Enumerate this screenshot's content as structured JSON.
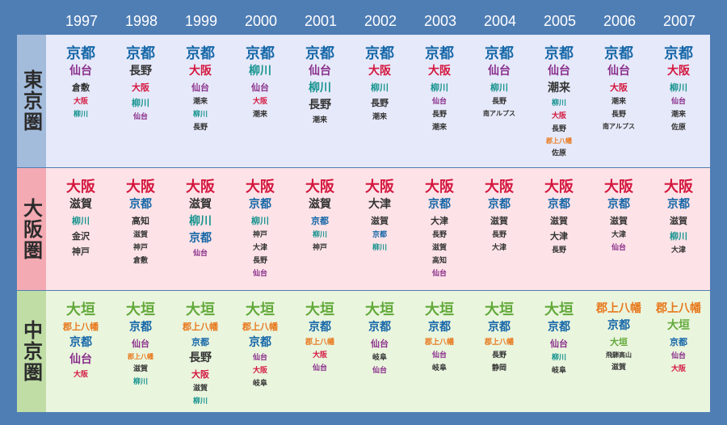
{
  "colors": {
    "background": "#4f7eb5",
    "tokyo_panel": "#e6e9f9",
    "tokyo_label": "#a4bcdc",
    "osaka_panel": "#fde3e7",
    "osaka_label": "#f3aab2",
    "chubu_panel": "#eaf5de",
    "chubu_label": "#bfdda5"
  },
  "years": [
    "1997",
    "1998",
    "1999",
    "2000",
    "2001",
    "2002",
    "2003",
    "2004",
    "2005",
    "2006",
    "2007"
  ],
  "regions": [
    {
      "label": "東京圏",
      "columns": [
        [
          {
            "t": "京都",
            "c": "#1667a8",
            "s": 1
          },
          {
            "t": "仙台",
            "c": "#8a2f8c",
            "s": 2
          },
          {
            "t": "倉敷",
            "c": "#333333",
            "s": 3
          },
          {
            "t": "大阪",
            "c": "#d4163e",
            "s": 4
          },
          {
            "t": "柳川",
            "c": "#16938f",
            "s": 4
          }
        ],
        [
          {
            "t": "京都",
            "c": "#1667a8",
            "s": 1
          },
          {
            "t": "長野",
            "c": "#333333",
            "s": 2
          },
          {
            "t": "大阪",
            "c": "#d4163e",
            "s": 3
          },
          {
            "t": "柳川",
            "c": "#16938f",
            "s": 3
          },
          {
            "t": "仙台",
            "c": "#8a2f8c",
            "s": 4
          }
        ],
        [
          {
            "t": "京都",
            "c": "#1667a8",
            "s": 1
          },
          {
            "t": "大阪",
            "c": "#d4163e",
            "s": 2
          },
          {
            "t": "仙台",
            "c": "#8a2f8c",
            "s": 3
          },
          {
            "t": "潮来",
            "c": "#333333",
            "s": 4
          },
          {
            "t": "柳川",
            "c": "#16938f",
            "s": 4
          },
          {
            "t": "長野",
            "c": "#333333",
            "s": 4
          }
        ],
        [
          {
            "t": "京都",
            "c": "#1667a8",
            "s": 1
          },
          {
            "t": "柳川",
            "c": "#16938f",
            "s": 2
          },
          {
            "t": "仙台",
            "c": "#8a2f8c",
            "s": 3
          },
          {
            "t": "大阪",
            "c": "#d4163e",
            "s": 4
          },
          {
            "t": "潮来",
            "c": "#333333",
            "s": 4
          }
        ],
        [
          {
            "t": "京都",
            "c": "#1667a8",
            "s": 1
          },
          {
            "t": "仙台",
            "c": "#8a2f8c",
            "s": 2
          },
          {
            "t": "柳川",
            "c": "#16938f",
            "s": 2
          },
          {
            "t": "長野",
            "c": "#333333",
            "s": 2
          },
          {
            "t": "潮来",
            "c": "#333333",
            "s": 4
          }
        ],
        [
          {
            "t": "京都",
            "c": "#1667a8",
            "s": 1
          },
          {
            "t": "大阪",
            "c": "#d4163e",
            "s": 2
          },
          {
            "t": "柳川",
            "c": "#16938f",
            "s": 3
          },
          {
            "t": "長野",
            "c": "#333333",
            "s": 3
          },
          {
            "t": "潮来",
            "c": "#333333",
            "s": 4
          }
        ],
        [
          {
            "t": "京都",
            "c": "#1667a8",
            "s": 1
          },
          {
            "t": "大阪",
            "c": "#d4163e",
            "s": 2
          },
          {
            "t": "柳川",
            "c": "#16938f",
            "s": 3
          },
          {
            "t": "仙台",
            "c": "#8a2f8c",
            "s": 4
          },
          {
            "t": "長野",
            "c": "#333333",
            "s": 4
          },
          {
            "t": "潮来",
            "c": "#333333",
            "s": 4
          }
        ],
        [
          {
            "t": "京都",
            "c": "#1667a8",
            "s": 1
          },
          {
            "t": "仙台",
            "c": "#8a2f8c",
            "s": 2
          },
          {
            "t": "柳川",
            "c": "#16938f",
            "s": 3
          },
          {
            "t": "長野",
            "c": "#333333",
            "s": 4
          },
          {
            "t": "南アルプス",
            "c": "#333333",
            "s": 5
          }
        ],
        [
          {
            "t": "京都",
            "c": "#1667a8",
            "s": 1
          },
          {
            "t": "仙台",
            "c": "#8a2f8c",
            "s": 2
          },
          {
            "t": "潮来",
            "c": "#333333",
            "s": 2
          },
          {
            "t": "柳川",
            "c": "#16938f",
            "s": 4
          },
          {
            "t": "大阪",
            "c": "#d4163e",
            "s": 4
          },
          {
            "t": "長野",
            "c": "#333333",
            "s": 4
          },
          {
            "t": "郡上八幡",
            "c": "#e8781c",
            "s": 5
          },
          {
            "t": "佐原",
            "c": "#333333",
            "s": 4
          }
        ],
        [
          {
            "t": "京都",
            "c": "#1667a8",
            "s": 1
          },
          {
            "t": "仙台",
            "c": "#8a2f8c",
            "s": 2
          },
          {
            "t": "大阪",
            "c": "#d4163e",
            "s": 3
          },
          {
            "t": "潮来",
            "c": "#333333",
            "s": 4
          },
          {
            "t": "長野",
            "c": "#333333",
            "s": 4
          },
          {
            "t": "南アルプス",
            "c": "#333333",
            "s": 5
          }
        ],
        [
          {
            "t": "京都",
            "c": "#1667a8",
            "s": 1
          },
          {
            "t": "大阪",
            "c": "#d4163e",
            "s": 2
          },
          {
            "t": "柳川",
            "c": "#16938f",
            "s": 3
          },
          {
            "t": "仙台",
            "c": "#8a2f8c",
            "s": 4
          },
          {
            "t": "潮来",
            "c": "#333333",
            "s": 4
          },
          {
            "t": "佐原",
            "c": "#333333",
            "s": 4
          }
        ]
      ]
    },
    {
      "label": "大阪圏",
      "columns": [
        [
          {
            "t": "大阪",
            "c": "#d4163e",
            "s": 1
          },
          {
            "t": "滋賀",
            "c": "#333333",
            "s": 2
          },
          {
            "t": "柳川",
            "c": "#16938f",
            "s": 3
          },
          {
            "t": "金沢",
            "c": "#333333",
            "s": 3
          },
          {
            "t": "神戸",
            "c": "#333333",
            "s": 3
          }
        ],
        [
          {
            "t": "大阪",
            "c": "#d4163e",
            "s": 1
          },
          {
            "t": "京都",
            "c": "#1667a8",
            "s": 2
          },
          {
            "t": "高知",
            "c": "#333333",
            "s": 3
          },
          {
            "t": "滋賀",
            "c": "#333333",
            "s": 4
          },
          {
            "t": "神戸",
            "c": "#333333",
            "s": 4
          },
          {
            "t": "倉敷",
            "c": "#333333",
            "s": 4
          }
        ],
        [
          {
            "t": "大阪",
            "c": "#d4163e",
            "s": 1
          },
          {
            "t": "滋賀",
            "c": "#333333",
            "s": 2
          },
          {
            "t": "柳川",
            "c": "#16938f",
            "s": 2
          },
          {
            "t": "京都",
            "c": "#1667a8",
            "s": 2
          },
          {
            "t": "仙台",
            "c": "#8a2f8c",
            "s": 4
          }
        ],
        [
          {
            "t": "大阪",
            "c": "#d4163e",
            "s": 1
          },
          {
            "t": "京都",
            "c": "#1667a8",
            "s": 2
          },
          {
            "t": "柳川",
            "c": "#16938f",
            "s": 3
          },
          {
            "t": "神戸",
            "c": "#333333",
            "s": 4
          },
          {
            "t": "大津",
            "c": "#333333",
            "s": 4
          },
          {
            "t": "長野",
            "c": "#333333",
            "s": 4
          },
          {
            "t": "仙台",
            "c": "#8a2f8c",
            "s": 4
          }
        ],
        [
          {
            "t": "大阪",
            "c": "#d4163e",
            "s": 1
          },
          {
            "t": "滋賀",
            "c": "#333333",
            "s": 2
          },
          {
            "t": "京都",
            "c": "#1667a8",
            "s": 3
          },
          {
            "t": "柳川",
            "c": "#16938f",
            "s": 4
          },
          {
            "t": "神戸",
            "c": "#333333",
            "s": 4
          }
        ],
        [
          {
            "t": "大阪",
            "c": "#d4163e",
            "s": 1
          },
          {
            "t": "大津",
            "c": "#333333",
            "s": 2
          },
          {
            "t": "滋賀",
            "c": "#333333",
            "s": 3
          },
          {
            "t": "京都",
            "c": "#1667a8",
            "s": 4
          },
          {
            "t": "柳川",
            "c": "#16938f",
            "s": 4
          }
        ],
        [
          {
            "t": "大阪",
            "c": "#d4163e",
            "s": 1
          },
          {
            "t": "京都",
            "c": "#1667a8",
            "s": 2
          },
          {
            "t": "大津",
            "c": "#333333",
            "s": 3
          },
          {
            "t": "長野",
            "c": "#333333",
            "s": 4
          },
          {
            "t": "滋賀",
            "c": "#333333",
            "s": 4
          },
          {
            "t": "高知",
            "c": "#333333",
            "s": 4
          },
          {
            "t": "仙台",
            "c": "#8a2f8c",
            "s": 4
          }
        ],
        [
          {
            "t": "大阪",
            "c": "#d4163e",
            "s": 1
          },
          {
            "t": "京都",
            "c": "#1667a8",
            "s": 2
          },
          {
            "t": "滋賀",
            "c": "#333333",
            "s": 3
          },
          {
            "t": "長野",
            "c": "#333333",
            "s": 4
          },
          {
            "t": "大津",
            "c": "#333333",
            "s": 4
          }
        ],
        [
          {
            "t": "大阪",
            "c": "#d4163e",
            "s": 1
          },
          {
            "t": "京都",
            "c": "#1667a8",
            "s": 2
          },
          {
            "t": "滋賀",
            "c": "#333333",
            "s": 3
          },
          {
            "t": "大津",
            "c": "#333333",
            "s": 3
          },
          {
            "t": "長野",
            "c": "#333333",
            "s": 4
          }
        ],
        [
          {
            "t": "大阪",
            "c": "#d4163e",
            "s": 1
          },
          {
            "t": "京都",
            "c": "#1667a8",
            "s": 2
          },
          {
            "t": "滋賀",
            "c": "#333333",
            "s": 3
          },
          {
            "t": "大津",
            "c": "#333333",
            "s": 4
          },
          {
            "t": "仙台",
            "c": "#8a2f8c",
            "s": 4
          }
        ],
        [
          {
            "t": "大阪",
            "c": "#d4163e",
            "s": 1
          },
          {
            "t": "京都",
            "c": "#1667a8",
            "s": 2
          },
          {
            "t": "滋賀",
            "c": "#333333",
            "s": 3
          },
          {
            "t": "柳川",
            "c": "#16938f",
            "s": 3
          },
          {
            "t": "大津",
            "c": "#333333",
            "s": 4
          }
        ]
      ]
    },
    {
      "label": "中京圏",
      "columns": [
        [
          {
            "t": "大垣",
            "c": "#62a93a",
            "s": 1
          },
          {
            "t": "郡上八幡",
            "c": "#e8781c",
            "s": 3
          },
          {
            "t": "京都",
            "c": "#1667a8",
            "s": 2
          },
          {
            "t": "仙台",
            "c": "#8a2f8c",
            "s": 2
          },
          {
            "t": "大阪",
            "c": "#d4163e",
            "s": 4
          }
        ],
        [
          {
            "t": "大垣",
            "c": "#62a93a",
            "s": 1
          },
          {
            "t": "京都",
            "c": "#1667a8",
            "s": 2
          },
          {
            "t": "仙台",
            "c": "#8a2f8c",
            "s": 3
          },
          {
            "t": "郡上八幡",
            "c": "#e8781c",
            "s": 5
          },
          {
            "t": "滋賀",
            "c": "#333333",
            "s": 4
          },
          {
            "t": "柳川",
            "c": "#16938f",
            "s": 4
          }
        ],
        [
          {
            "t": "大垣",
            "c": "#62a93a",
            "s": 1
          },
          {
            "t": "郡上八幡",
            "c": "#e8781c",
            "s": 3
          },
          {
            "t": "京都",
            "c": "#1667a8",
            "s": 3
          },
          {
            "t": "長野",
            "c": "#333333",
            "s": 2
          },
          {
            "t": "大阪",
            "c": "#d4163e",
            "s": 3
          },
          {
            "t": "滋賀",
            "c": "#333333",
            "s": 4
          },
          {
            "t": "柳川",
            "c": "#16938f",
            "s": 4
          }
        ],
        [
          {
            "t": "大垣",
            "c": "#62a93a",
            "s": 1
          },
          {
            "t": "郡上八幡",
            "c": "#e8781c",
            "s": 3
          },
          {
            "t": "京都",
            "c": "#1667a8",
            "s": 2
          },
          {
            "t": "仙台",
            "c": "#8a2f8c",
            "s": 4
          },
          {
            "t": "大阪",
            "c": "#d4163e",
            "s": 4
          },
          {
            "t": "岐阜",
            "c": "#333333",
            "s": 4
          }
        ],
        [
          {
            "t": "大垣",
            "c": "#62a93a",
            "s": 1
          },
          {
            "t": "京都",
            "c": "#1667a8",
            "s": 2
          },
          {
            "t": "郡上八幡",
            "c": "#e8781c",
            "s": 4
          },
          {
            "t": "大阪",
            "c": "#d4163e",
            "s": 4
          },
          {
            "t": "仙台",
            "c": "#8a2f8c",
            "s": 4
          }
        ],
        [
          {
            "t": "大垣",
            "c": "#62a93a",
            "s": 1
          },
          {
            "t": "京都",
            "c": "#1667a8",
            "s": 2
          },
          {
            "t": "仙台",
            "c": "#8a2f8c",
            "s": 3
          },
          {
            "t": "岐阜",
            "c": "#333333",
            "s": 4
          },
          {
            "t": "仙台",
            "c": "#8a2f8c",
            "s": 4
          }
        ],
        [
          {
            "t": "大垣",
            "c": "#62a93a",
            "s": 1
          },
          {
            "t": "京都",
            "c": "#1667a8",
            "s": 2
          },
          {
            "t": "郡上八幡",
            "c": "#e8781c",
            "s": 4
          },
          {
            "t": "仙台",
            "c": "#8a2f8c",
            "s": 4
          },
          {
            "t": "岐阜",
            "c": "#333333",
            "s": 4
          }
        ],
        [
          {
            "t": "大垣",
            "c": "#62a93a",
            "s": 1
          },
          {
            "t": "京都",
            "c": "#1667a8",
            "s": 2
          },
          {
            "t": "郡上八幡",
            "c": "#e8781c",
            "s": 4
          },
          {
            "t": "長野",
            "c": "#333333",
            "s": 4
          },
          {
            "t": "静岡",
            "c": "#333333",
            "s": 4
          }
        ],
        [
          {
            "t": "大垣",
            "c": "#62a93a",
            "s": 1
          },
          {
            "t": "京都",
            "c": "#1667a8",
            "s": 2
          },
          {
            "t": "仙台",
            "c": "#8a2f8c",
            "s": 3
          },
          {
            "t": "柳川",
            "c": "#16938f",
            "s": 4
          },
          {
            "t": "岐阜",
            "c": "#333333",
            "s": 4
          }
        ],
        [
          {
            "t": "郡上八幡",
            "c": "#e8781c",
            "s": 2
          },
          {
            "t": "京都",
            "c": "#1667a8",
            "s": 2
          },
          {
            "t": "大垣",
            "c": "#62a93a",
            "s": 3
          },
          {
            "t": "飛騨高山",
            "c": "#333333",
            "s": 5
          },
          {
            "t": "滋賀",
            "c": "#333333",
            "s": 4
          }
        ],
        [
          {
            "t": "郡上八幡",
            "c": "#e8781c",
            "s": 2
          },
          {
            "t": "大垣",
            "c": "#62a93a",
            "s": 2
          },
          {
            "t": "京都",
            "c": "#1667a8",
            "s": 3
          },
          {
            "t": "仙台",
            "c": "#8a2f8c",
            "s": 4
          },
          {
            "t": "大阪",
            "c": "#d4163e",
            "s": 4
          }
        ]
      ]
    }
  ]
}
